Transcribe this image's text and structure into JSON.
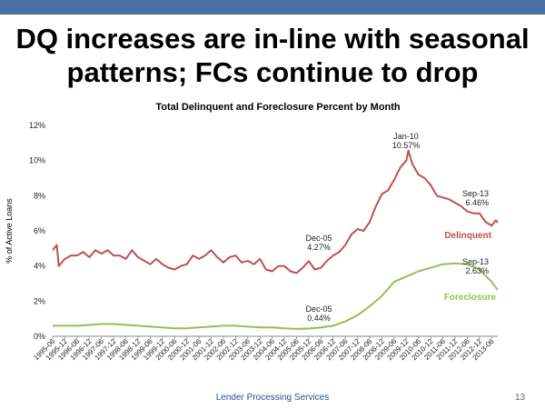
{
  "slide": {
    "title_line1": "DQ increases are in-line with seasonal",
    "title_line2": "patterns; FCs continue to drop",
    "footer": "Lender Processing Services",
    "page_number": "13"
  },
  "colors": {
    "delinquent": "#c0504d",
    "foreclosure": "#9bbb59",
    "header_bar": "#4a6fa5"
  },
  "chart_data": {
    "type": "line",
    "title": "Total Delinquent and Foreclosure Percent by Month",
    "ylabel": "% of Active Loans",
    "xlabel": "",
    "ylim": [
      0,
      12
    ],
    "yticks": [
      "0%",
      "2%",
      "4%",
      "6%",
      "8%",
      "10%",
      "12%"
    ],
    "grid": false,
    "x_start": "1995-06",
    "x_end": "2013-09",
    "x_ticks": [
      "1995-06",
      "1995-12",
      "1996-06",
      "1996-12",
      "1997-06",
      "1997-12",
      "1998-06",
      "1998-12",
      "1999-06",
      "1999-12",
      "2000-06",
      "2000-12",
      "2001-06",
      "2001-12",
      "2002-06",
      "2002-12",
      "2003-06",
      "2003-12",
      "2004-06",
      "2004-12",
      "2005-06",
      "2005-12",
      "2006-06",
      "2006-12",
      "2007-06",
      "2007-12",
      "2008-06",
      "2008-12",
      "2009-06",
      "2009-12",
      "2010-06",
      "2010-12",
      "2011-06",
      "2011-12",
      "2012-06",
      "2012-12",
      "2013-06"
    ],
    "series": [
      {
        "name": "Delinquent",
        "color": "#c0504d",
        "points": [
          [
            "1995-06",
            4.9
          ],
          [
            "1995-08",
            5.2
          ],
          [
            "1995-09",
            4.0
          ],
          [
            "1995-12",
            4.4
          ],
          [
            "1996-03",
            4.6
          ],
          [
            "1996-06",
            4.6
          ],
          [
            "1996-09",
            4.8
          ],
          [
            "1996-12",
            4.5
          ],
          [
            "1997-03",
            4.9
          ],
          [
            "1997-06",
            4.7
          ],
          [
            "1997-09",
            4.9
          ],
          [
            "1997-12",
            4.6
          ],
          [
            "1998-03",
            4.6
          ],
          [
            "1998-06",
            4.4
          ],
          [
            "1998-09",
            4.9
          ],
          [
            "1998-12",
            4.5
          ],
          [
            "1999-03",
            4.3
          ],
          [
            "1999-06",
            4.1
          ],
          [
            "1999-09",
            4.4
          ],
          [
            "1999-12",
            4.1
          ],
          [
            "2000-03",
            3.9
          ],
          [
            "2000-06",
            3.8
          ],
          [
            "2000-09",
            4.0
          ],
          [
            "2000-12",
            4.1
          ],
          [
            "2001-03",
            4.6
          ],
          [
            "2001-06",
            4.4
          ],
          [
            "2001-09",
            4.6
          ],
          [
            "2001-12",
            4.9
          ],
          [
            "2002-03",
            4.5
          ],
          [
            "2002-06",
            4.2
          ],
          [
            "2002-09",
            4.5
          ],
          [
            "2002-12",
            4.6
          ],
          [
            "2003-03",
            4.2
          ],
          [
            "2003-06",
            4.3
          ],
          [
            "2003-09",
            4.1
          ],
          [
            "2003-12",
            4.4
          ],
          [
            "2004-03",
            3.8
          ],
          [
            "2004-06",
            3.7
          ],
          [
            "2004-09",
            4.0
          ],
          [
            "2004-12",
            4.0
          ],
          [
            "2005-03",
            3.7
          ],
          [
            "2005-06",
            3.6
          ],
          [
            "2005-09",
            3.9
          ],
          [
            "2005-12",
            4.27
          ],
          [
            "2006-03",
            3.8
          ],
          [
            "2006-06",
            3.9
          ],
          [
            "2006-09",
            4.3
          ],
          [
            "2006-12",
            4.6
          ],
          [
            "2007-03",
            4.8
          ],
          [
            "2007-06",
            5.2
          ],
          [
            "2007-09",
            5.8
          ],
          [
            "2007-12",
            6.1
          ],
          [
            "2008-03",
            6.0
          ],
          [
            "2008-06",
            6.5
          ],
          [
            "2008-09",
            7.4
          ],
          [
            "2008-12",
            8.1
          ],
          [
            "2009-03",
            8.3
          ],
          [
            "2009-06",
            8.9
          ],
          [
            "2009-09",
            9.6
          ],
          [
            "2009-12",
            10.0
          ],
          [
            "2010-01",
            10.57
          ],
          [
            "2010-03",
            9.8
          ],
          [
            "2010-06",
            9.2
          ],
          [
            "2010-09",
            9.0
          ],
          [
            "2010-12",
            8.6
          ],
          [
            "2011-03",
            8.0
          ],
          [
            "2011-06",
            7.9
          ],
          [
            "2011-09",
            7.8
          ],
          [
            "2011-12",
            7.6
          ],
          [
            "2012-03",
            7.4
          ],
          [
            "2012-06",
            7.1
          ],
          [
            "2012-09",
            7.0
          ],
          [
            "2012-12",
            7.0
          ],
          [
            "2013-03",
            6.5
          ],
          [
            "2013-06",
            6.3
          ],
          [
            "2013-08",
            6.6
          ],
          [
            "2013-09",
            6.46
          ]
        ]
      },
      {
        "name": "Foreclosure",
        "color": "#9bbb59",
        "points": [
          [
            "1995-06",
            0.6
          ],
          [
            "1996-06",
            0.6
          ],
          [
            "1997-06",
            0.7
          ],
          [
            "1997-12",
            0.7
          ],
          [
            "1998-06",
            0.65
          ],
          [
            "1998-12",
            0.6
          ],
          [
            "1999-06",
            0.55
          ],
          [
            "1999-12",
            0.5
          ],
          [
            "2000-06",
            0.45
          ],
          [
            "2000-12",
            0.45
          ],
          [
            "2001-06",
            0.5
          ],
          [
            "2001-12",
            0.55
          ],
          [
            "2002-06",
            0.6
          ],
          [
            "2002-12",
            0.6
          ],
          [
            "2003-06",
            0.55
          ],
          [
            "2003-12",
            0.5
          ],
          [
            "2004-06",
            0.5
          ],
          [
            "2004-12",
            0.45
          ],
          [
            "2005-06",
            0.42
          ],
          [
            "2005-12",
            0.44
          ],
          [
            "2006-06",
            0.5
          ],
          [
            "2006-12",
            0.6
          ],
          [
            "2007-06",
            0.85
          ],
          [
            "2007-12",
            1.2
          ],
          [
            "2008-06",
            1.7
          ],
          [
            "2008-12",
            2.3
          ],
          [
            "2009-06",
            3.1
          ],
          [
            "2009-12",
            3.4
          ],
          [
            "2010-06",
            3.7
          ],
          [
            "2010-12",
            3.9
          ],
          [
            "2011-06",
            4.1
          ],
          [
            "2011-12",
            4.15
          ],
          [
            "2012-06",
            4.1
          ],
          [
            "2012-12",
            3.8
          ],
          [
            "2013-06",
            3.1
          ],
          [
            "2013-09",
            2.63
          ]
        ]
      }
    ],
    "annotations": [
      {
        "label": "Jan-10",
        "value_text": "10.57%",
        "x": "2010-01",
        "y": 10.57,
        "series": "Delinquent"
      },
      {
        "label": "Dec-05",
        "value_text": "4.27%",
        "x": "2005-12",
        "y": 4.27,
        "series": "Delinquent"
      },
      {
        "label": "Sep-13",
        "value_text": "6.46%",
        "x": "2013-09",
        "y": 6.46,
        "series": "Delinquent"
      },
      {
        "label": "Dec-05",
        "value_text": "0.44%",
        "x": "2005-12",
        "y": 0.44,
        "series": "Foreclosure"
      },
      {
        "label": "Sep-13",
        "value_text": "2.63%",
        "x": "2013-09",
        "y": 2.63,
        "series": "Foreclosure"
      }
    ],
    "legend": "inline-labels"
  }
}
